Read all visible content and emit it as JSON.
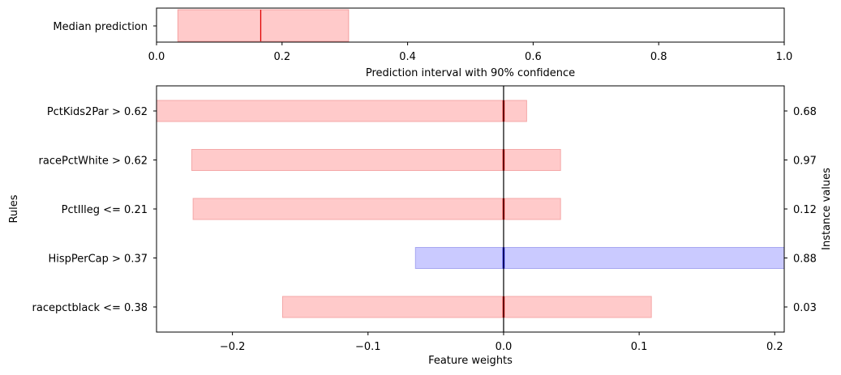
{
  "chart_data": [
    {
      "type": "bar",
      "subtype": "horizontal-interval",
      "categories": [
        "Median prediction"
      ],
      "median": 0.166,
      "interval": [
        0.034,
        0.306
      ],
      "xlabel": "Prediction interval with 90% confidence",
      "xlim": [
        0,
        1
      ],
      "xticks": [
        "0.0",
        "0.2",
        "0.4",
        "0.6",
        "0.8",
        "1.0"
      ],
      "colors": {
        "interval_fill": "#ffcaca",
        "median_line": "#e00000"
      }
    },
    {
      "type": "bar",
      "subtype": "horizontal-interval",
      "categories": [
        "PctKids2Par > 0.62",
        "racePctWhite > 0.62",
        "PctIlleg <= 0.21",
        "HispPerCap > 0.37",
        "racepctblack <= 0.38"
      ],
      "intervals": [
        [
          -0.26,
          0.017
        ],
        [
          -0.23,
          0.042
        ],
        [
          -0.229,
          0.042
        ],
        [
          -0.065,
          0.21
        ],
        [
          -0.163,
          0.109
        ]
      ],
      "signs": [
        "positive",
        "positive",
        "positive",
        "negative",
        "positive"
      ],
      "instance_values": [
        "0.68",
        "0.97",
        "0.12",
        "0.88",
        "0.03"
      ],
      "xlabel": "Feature weights",
      "ylabel": "Rules",
      "y2label": "Instance values",
      "xlim": [
        -0.256,
        0.207
      ],
      "xticks": [
        -0.2,
        -0.1,
        0.0,
        0.1,
        0.2
      ],
      "xtick_labels": [
        "−0.2",
        "−0.1",
        "0.0",
        "0.1",
        "0.2"
      ],
      "colors": {
        "positive_fill": "#ffcaca",
        "negative_fill": "#cacaff",
        "positive_marker": "#ff0000",
        "negative_marker": "#0000ff",
        "zero_line": "#000000"
      }
    }
  ]
}
